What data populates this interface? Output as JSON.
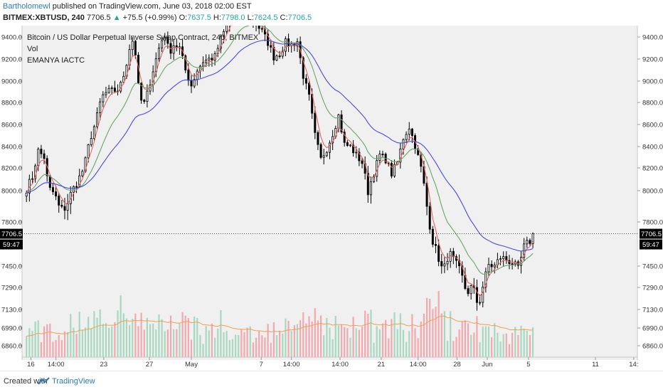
{
  "header": {
    "user": "Bartholomewl",
    "published_text": "published on TradingView.com, June 03, 2018 02:00 EST",
    "symbol": "BITMEX:XBTUSD, 240",
    "last": "7706.5",
    "change": "+75.5 (+0.99%)",
    "open_label": "O:",
    "open": "7637.5",
    "high_label": "H:",
    "high": "7798.0",
    "low_label": "L:",
    "low": "7624.5",
    "close_label": "C:",
    "close": "7706.5"
  },
  "footer": {
    "created_with": "Created with",
    "brand": "TradingView"
  },
  "colors": {
    "background": "#f0f0f0",
    "candle": "#000000",
    "ema_fast": "#e06666",
    "ema_mid": "#6aa56a",
    "ema_slow": "#4a4ae0",
    "volume_up": "#a8d8c0",
    "volume_down": "#f4a8ad",
    "volume_ma": "#f0a050",
    "price_tag": "#000000"
  },
  "chart_data": {
    "type": "candlestick",
    "title": "Bitcoin / US Dollar Perpetual Inverse Swap Contract, 240, BITMEX",
    "indicators": [
      "Vol",
      "EMANYA IACTC"
    ],
    "y_ticks": [
      "9400.0",
      "9200.0",
      "9000.0",
      "8800.0",
      "8600.0",
      "8400.0",
      "8200.0",
      "8000.0",
      "7800.0",
      "7450.0",
      "7290.0",
      "7130.0",
      "6990.0",
      "6860.0"
    ],
    "y_tick_values": [
      9400,
      9200,
      9000,
      8800,
      8600,
      8400,
      8200,
      8000,
      7800,
      7450,
      7290,
      7130,
      6990,
      6860
    ],
    "last_price_label": "7706.5",
    "last_price": 7706.5,
    "countdown_label": "59:47",
    "x_ticks": [
      "16",
      "14:00",
      "23",
      "27",
      "May",
      "7",
      "14:00",
      "14:00",
      "21",
      "14:00",
      "28",
      "Jun",
      "5",
      "11",
      "14:"
    ],
    "x_tick_days": [
      0.3,
      2,
      5.25,
      8.35,
      11.2,
      15.95,
      18,
      21.3,
      24.1,
      26.6,
      29.25,
      31.3,
      34.1,
      38.65,
      41.25
    ],
    "x_range_days": [
      -0.3,
      41.5
    ],
    "series_close": [
      [
        0,
        8020
      ],
      [
        0.4,
        8120
      ],
      [
        0.8,
        8360
      ],
      [
        1.2,
        8300
      ],
      [
        1.5,
        8020
      ],
      [
        1.9,
        7980
      ],
      [
        2.3,
        7870
      ],
      [
        2.7,
        7900
      ],
      [
        3.1,
        8000
      ],
      [
        3.5,
        8090
      ],
      [
        3.9,
        8200
      ],
      [
        4.3,
        8460
      ],
      [
        4.7,
        8620
      ],
      [
        5.1,
        8850
      ],
      [
        5.5,
        8900
      ],
      [
        5.9,
        8910
      ],
      [
        6.3,
        8920
      ],
      [
        6.7,
        9100
      ],
      [
        7.0,
        9300
      ],
      [
        7.3,
        9400
      ],
      [
        7.6,
        8950
      ],
      [
        7.9,
        8750
      ],
      [
        8.2,
        8880
      ],
      [
        8.5,
        9050
      ],
      [
        8.8,
        9200
      ],
      [
        9.1,
        9350
      ],
      [
        9.4,
        9420
      ],
      [
        9.7,
        9260
      ],
      [
        10.0,
        9330
      ],
      [
        10.4,
        9300
      ],
      [
        10.8,
        9100
      ],
      [
        11.2,
        8960
      ],
      [
        11.6,
        9100
      ],
      [
        12.0,
        9180
      ],
      [
        12.4,
        9200
      ],
      [
        12.8,
        9220
      ],
      [
        13.2,
        9380
      ],
      [
        13.6,
        9500
      ],
      [
        14.0,
        9620
      ],
      [
        14.4,
        9700
      ],
      [
        14.8,
        9600
      ],
      [
        15.2,
        9560
      ],
      [
        15.6,
        9520
      ],
      [
        16.0,
        9450
      ],
      [
        16.4,
        9350
      ],
      [
        16.8,
        9220
      ],
      [
        17.2,
        9250
      ],
      [
        17.6,
        9350
      ],
      [
        18.0,
        9330
      ],
      [
        18.4,
        9360
      ],
      [
        18.8,
        9050
      ],
      [
        19.2,
        8850
      ],
      [
        19.6,
        8500
      ],
      [
        20.0,
        8280
      ],
      [
        20.4,
        8380
      ],
      [
        20.8,
        8520
      ],
      [
        21.2,
        8680
      ],
      [
        21.6,
        8420
      ],
      [
        22.0,
        8400
      ],
      [
        22.4,
        8320
      ],
      [
        22.8,
        8250
      ],
      [
        23.2,
        8000
      ],
      [
        23.6,
        8160
      ],
      [
        24.0,
        8320
      ],
      [
        24.4,
        8280
      ],
      [
        24.8,
        8150
      ],
      [
        25.2,
        8250
      ],
      [
        25.6,
        8480
      ],
      [
        26.0,
        8580
      ],
      [
        26.4,
        8410
      ],
      [
        26.8,
        8200
      ],
      [
        27.2,
        7900
      ],
      [
        27.6,
        7650
      ],
      [
        27.9,
        7550
      ],
      [
        28.3,
        7400
      ],
      [
        28.7,
        7560
      ],
      [
        29.1,
        7480
      ],
      [
        29.5,
        7400
      ],
      [
        29.9,
        7250
      ],
      [
        30.3,
        7300
      ],
      [
        30.7,
        7150
      ],
      [
        31.0,
        7300
      ],
      [
        31.4,
        7460
      ],
      [
        31.8,
        7450
      ],
      [
        32.2,
        7520
      ],
      [
        32.6,
        7500
      ],
      [
        33.0,
        7480
      ],
      [
        33.4,
        7420
      ],
      [
        33.8,
        7600
      ],
      [
        34.2,
        7650
      ],
      [
        34.4,
        7706.5
      ]
    ],
    "y_scale_note": "piecewise axis from tick labels"
  }
}
